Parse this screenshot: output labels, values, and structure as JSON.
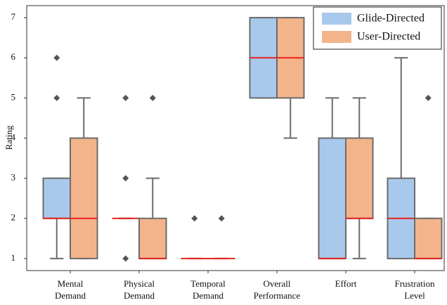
{
  "chart_data": {
    "type": "box",
    "y_label": "Rating",
    "categories": [
      [
        "Mental",
        "Demand"
      ],
      [
        "Physical",
        "Demand"
      ],
      [
        "Temporal",
        "Demand"
      ],
      [
        "Overall",
        "Performance"
      ],
      [
        "Effort"
      ],
      [
        "Frustration",
        "Level"
      ]
    ],
    "ylim": [
      0.7,
      7.3
    ],
    "yticks": [
      1,
      2,
      3,
      4,
      5,
      6,
      7
    ],
    "grid": false,
    "legend": "upper right",
    "median_color": "#e8211d",
    "series": [
      {
        "name": "Glide-Directed",
        "color": "#a9c9ec",
        "whislo": [
          1,
          2,
          1,
          5,
          1,
          1
        ],
        "q1": [
          2,
          2,
          1,
          5,
          1,
          1
        ],
        "med": [
          2,
          2,
          1,
          6,
          1,
          2
        ],
        "q3": [
          3,
          2,
          1,
          7,
          4,
          3
        ],
        "whishi": [
          3,
          2,
          1,
          7,
          5,
          6
        ],
        "outliers": [
          [
            5,
            6
          ],
          [
            1,
            3,
            5
          ],
          [
            2
          ],
          [],
          [],
          []
        ]
      },
      {
        "name": "User-Directed",
        "color": "#f4b48b",
        "whislo": [
          1,
          1,
          1,
          4,
          1,
          1
        ],
        "q1": [
          1,
          1,
          1,
          5,
          2,
          1
        ],
        "med": [
          2,
          1,
          1,
          6,
          2,
          1
        ],
        "q3": [
          4,
          2,
          1,
          7,
          4,
          2
        ],
        "whishi": [
          5,
          3,
          1,
          7,
          5,
          2
        ],
        "outliers": [
          [],
          [
            5
          ],
          [
            2
          ],
          [],
          [],
          [
            5
          ]
        ]
      }
    ]
  }
}
